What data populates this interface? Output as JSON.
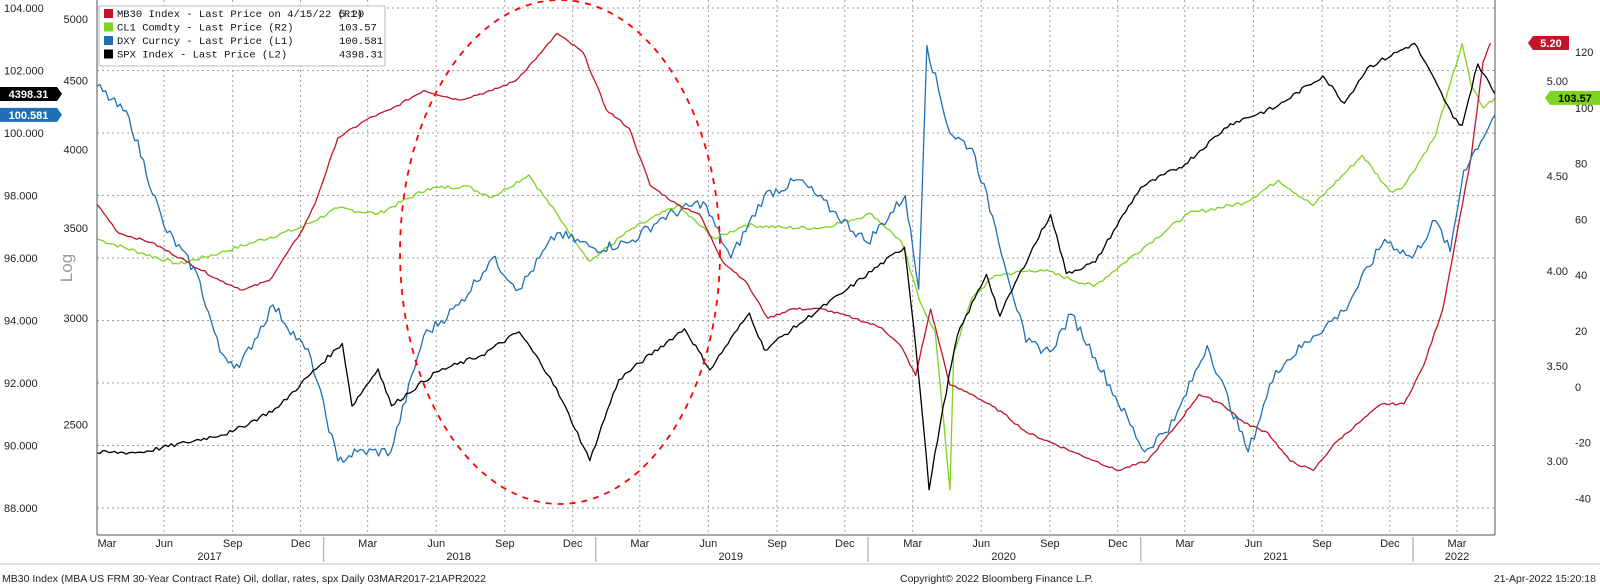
{
  "chart_data": {
    "type": "line",
    "legend": {
      "placement": "top-left",
      "entries": [
        {
          "label": "MB30 Index  - Last Price on 4/15/22 (R1)",
          "value": "5.20",
          "color": "#c0152a"
        },
        {
          "label": "CL1 Comdty  - Last Price (R2)",
          "value": "103.57",
          "color": "#7ed321"
        },
        {
          "label": "DXY Curncy  - Last Price (L1)",
          "value": "100.581",
          "color": "#1f6fb5"
        },
        {
          "label": "SPX Index  - Last Price (L2)",
          "value": "4398.31",
          "color": "#000000"
        }
      ]
    },
    "axes": {
      "L1": {
        "ticks": [
          "104.000",
          "102.000",
          "100.000",
          "98.000",
          "96.000",
          "94.000",
          "92.000",
          "90.000",
          "88.000"
        ],
        "range": [
          87,
          104.4
        ]
      },
      "L2": {
        "ticks": [
          "5000",
          "4500",
          "4000",
          "3500",
          "3000",
          "2500"
        ],
        "scale": "log",
        "label": "Log"
      },
      "R1": {
        "ticks": [
          "5.00",
          "4.50",
          "4.00",
          "3.50",
          "3.00"
        ],
        "range": [
          2.6,
          5.45
        ]
      },
      "R2": {
        "ticks": [
          "120",
          "100",
          "80",
          "60",
          "40",
          "20",
          "0",
          "-20",
          "-40"
        ],
        "range": [
          -50,
          133
        ]
      }
    },
    "x_month_ticks": [
      "Mar",
      "Jun",
      "Sep",
      "Dec",
      "Mar",
      "Jun",
      "Sep",
      "Dec",
      "Mar",
      "Jun",
      "Sep",
      "Dec",
      "Mar",
      "Jun",
      "Sep",
      "Dec",
      "Mar",
      "Jun",
      "Sep",
      "Dec",
      "Mar"
    ],
    "x_year_ticks": [
      "2017",
      "2018",
      "2019",
      "2020",
      "2021",
      "2022"
    ],
    "date_range": [
      "2017-03-03",
      "2022-04-21"
    ],
    "grid": true,
    "series": [
      {
        "name": "MB30 Index",
        "axis": "R1",
        "color": "#c0152a",
        "x": [
          "2017-03-03",
          "2017-04-01",
          "2017-05-15",
          "2017-07-01",
          "2017-08-15",
          "2017-09-15",
          "2017-10-20",
          "2017-12-01",
          "2017-12-20",
          "2018-01-20",
          "2018-03-01",
          "2018-04-01",
          "2018-05-15",
          "2018-07-01",
          "2018-08-15",
          "2018-09-15",
          "2018-10-20",
          "2018-11-10",
          "2018-12-15",
          "2019-01-15",
          "2019-02-15",
          "2019-03-15",
          "2019-04-20",
          "2019-05-20",
          "2019-06-20",
          "2019-07-20",
          "2019-08-20",
          "2019-09-20",
          "2019-11-01",
          "2019-12-15",
          "2020-01-20",
          "2020-02-15",
          "2020-03-05",
          "2020-03-25",
          "2020-04-20",
          "2020-05-20",
          "2020-07-01",
          "2020-08-01",
          "2020-09-01",
          "2020-10-01",
          "2020-11-01",
          "2020-12-01",
          "2021-01-10",
          "2021-02-20",
          "2021-03-20",
          "2021-04-20",
          "2021-05-20",
          "2021-06-20",
          "2021-07-20",
          "2021-08-20",
          "2021-09-20",
          "2021-10-20",
          "2021-11-20",
          "2021-12-20",
          "2022-01-15",
          "2022-02-10",
          "2022-03-01",
          "2022-03-20",
          "2022-04-05",
          "2022-04-15"
        ],
        "values": [
          4.35,
          4.2,
          4.15,
          4.05,
          3.95,
          3.9,
          3.95,
          4.2,
          4.35,
          4.7,
          4.8,
          4.85,
          4.95,
          4.9,
          4.95,
          5.0,
          5.15,
          5.25,
          5.15,
          4.85,
          4.75,
          4.45,
          4.35,
          4.3,
          4.05,
          3.95,
          3.75,
          3.8,
          3.8,
          3.75,
          3.7,
          3.6,
          3.45,
          3.8,
          3.4,
          3.35,
          3.25,
          3.15,
          3.1,
          3.05,
          3.0,
          2.95,
          3.0,
          3.2,
          3.35,
          3.3,
          3.2,
          3.15,
          3.0,
          2.95,
          3.1,
          3.2,
          3.3,
          3.3,
          3.5,
          3.8,
          4.2,
          4.6,
          5.1,
          5.2
        ]
      },
      {
        "name": "CL1 Comdty",
        "axis": "R2",
        "color": "#7ed321",
        "x": [
          "2017-03-03",
          "2017-05-01",
          "2017-06-20",
          "2017-08-15",
          "2017-10-01",
          "2017-12-01",
          "2018-01-20",
          "2018-03-15",
          "2018-05-20",
          "2018-07-10",
          "2018-08-15",
          "2018-10-03",
          "2018-11-20",
          "2018-12-24",
          "2019-02-15",
          "2019-04-20",
          "2019-06-10",
          "2019-07-20",
          "2019-09-15",
          "2019-11-01",
          "2020-01-06",
          "2020-02-15",
          "2020-03-10",
          "2020-03-31",
          "2020-04-20",
          "2020-04-25",
          "2020-05-20",
          "2020-06-20",
          "2020-08-20",
          "2020-10-30",
          "2021-01-05",
          "2021-03-05",
          "2021-05-20",
          "2021-07-05",
          "2021-08-20",
          "2021-10-25",
          "2021-12-01",
          "2021-12-20",
          "2022-01-31",
          "2022-03-08",
          "2022-03-20",
          "2022-04-05",
          "2022-04-21"
        ],
        "values": [
          53,
          48,
          44,
          48,
          52,
          57,
          64,
          62,
          71,
          72,
          68,
          76,
          58,
          45,
          56,
          65,
          53,
          58,
          57,
          57,
          62,
          52,
          31,
          20,
          -37,
          12,
          32,
          40,
          42,
          36,
          50,
          62,
          66,
          74,
          65,
          83,
          70,
          72,
          90,
          123,
          108,
          100,
          103.57
        ]
      },
      {
        "name": "DXY Curncy",
        "axis": "L1",
        "color": "#1f6fb5",
        "x": [
          "2017-03-03",
          "2017-04-15",
          "2017-06-01",
          "2017-07-15",
          "2017-08-15",
          "2017-09-10",
          "2017-10-25",
          "2017-12-15",
          "2018-01-20",
          "2018-02-15",
          "2018-04-01",
          "2018-05-15",
          "2018-07-01",
          "2018-08-15",
          "2018-09-20",
          "2018-11-10",
          "2018-12-31",
          "2019-02-15",
          "2019-04-01",
          "2019-05-25",
          "2019-07-01",
          "2019-08-15",
          "2019-10-01",
          "2019-11-15",
          "2019-12-31",
          "2020-02-20",
          "2020-03-09",
          "2020-03-20",
          "2020-04-20",
          "2020-05-20",
          "2020-06-20",
          "2020-07-31",
          "2020-09-01",
          "2020-09-30",
          "2020-11-01",
          "2021-01-06",
          "2021-02-15",
          "2021-03-31",
          "2021-05-25",
          "2021-07-01",
          "2021-08-20",
          "2021-09-30",
          "2021-11-24",
          "2021-12-31",
          "2022-01-31",
          "2022-02-20",
          "2022-03-10",
          "2022-04-21"
        ],
        "values": [
          101.5,
          100.5,
          97,
          95.5,
          93,
          92.5,
          94.5,
          92.8,
          89.5,
          89.8,
          89.8,
          93.5,
          94.5,
          96,
          95,
          96.8,
          96.3,
          96.5,
          97.3,
          97.8,
          96,
          98,
          98.5,
          97.5,
          96.5,
          98,
          95,
          102.8,
          100,
          99.5,
          97,
          93.3,
          93,
          94.2,
          92.8,
          89.8,
          90.8,
          93.2,
          89.8,
          92.4,
          93.5,
          94.3,
          96.6,
          96,
          97.2,
          96.2,
          98.8,
          100.581
        ]
      },
      {
        "name": "SPX Index",
        "axis": "L2",
        "color": "#000000",
        "x": [
          "2017-03-03",
          "2017-05-01",
          "2017-07-01",
          "2017-09-01",
          "2017-11-01",
          "2018-01-26",
          "2018-02-08",
          "2018-03-15",
          "2018-04-02",
          "2018-06-01",
          "2018-08-01",
          "2018-09-20",
          "2018-11-01",
          "2018-12-24",
          "2019-02-01",
          "2019-04-30",
          "2019-06-03",
          "2019-07-26",
          "2019-08-15",
          "2019-10-01",
          "2019-12-01",
          "2020-02-19",
          "2020-03-23",
          "2020-04-30",
          "2020-06-08",
          "2020-06-26",
          "2020-09-02",
          "2020-09-23",
          "2020-11-01",
          "2021-01-01",
          "2021-03-01",
          "2021-05-01",
          "2021-07-01",
          "2021-09-02",
          "2021-10-01",
          "2021-11-01",
          "2022-01-03",
          "2022-02-24",
          "2022-03-08",
          "2022-03-29",
          "2022-04-21"
        ],
        "values": [
          2383,
          2385,
          2425,
          2470,
          2575,
          2872,
          2581,
          2750,
          2582,
          2735,
          2815,
          2930,
          2710,
          2351,
          2700,
          2945,
          2745,
          3025,
          2840,
          2970,
          3140,
          3386,
          2237,
          2912,
          3232,
          3010,
          3580,
          3237,
          3300,
          3750,
          3900,
          4180,
          4300,
          4537,
          4330,
          4600,
          4796,
          4225,
          4170,
          4630,
          4398.31
        ]
      }
    ],
    "current_value_tags": [
      {
        "series": "MB30 Index",
        "text": "5.20",
        "side": "right"
      },
      {
        "series": "CL1 Comdty",
        "text": "103.57",
        "side": "right"
      },
      {
        "series": "DXY Curncy",
        "text": "100.581",
        "side": "left"
      },
      {
        "series": "SPX Index",
        "text": "4398.31",
        "side": "left"
      }
    ],
    "annotations": [
      {
        "type": "dashed-ellipse",
        "color": "#ff0000"
      }
    ]
  },
  "footer": {
    "left": "MB30 Index (MBA US FRM 30-Year Contract Rate) Oil, dollar, rates, spx  Daily 03MAR2017-21APR2022",
    "center": "Copyright© 2022 Bloomberg Finance L.P.",
    "right": "21-Apr-2022 15:20:18"
  }
}
